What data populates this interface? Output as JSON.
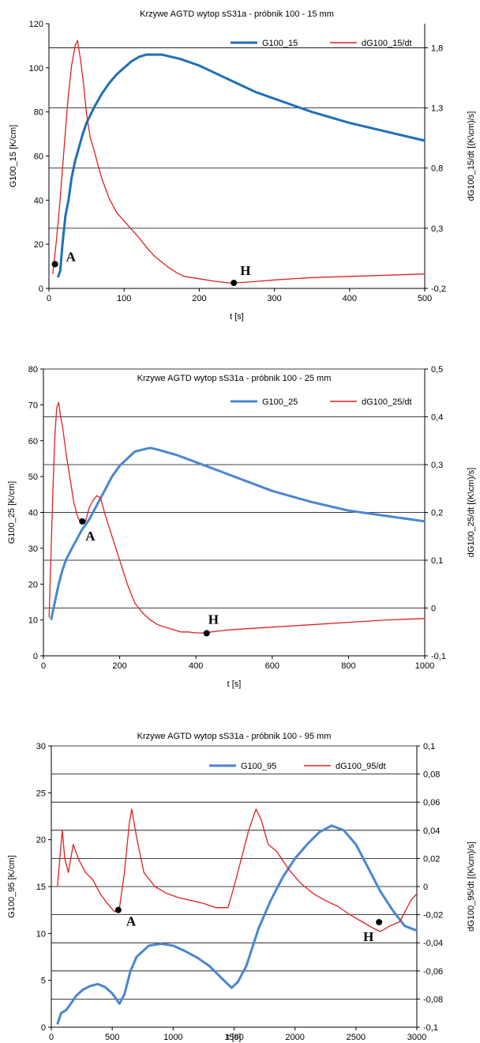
{
  "colors": {
    "g_series": "#4a86d0",
    "g_series_dark": "#1f6fb8",
    "dg_series": "#e02020",
    "grid": "#000000",
    "marker": "#000000"
  },
  "chart_data": [
    {
      "type": "line",
      "title": "Krzywe AGTD   wytop sS31a - próbnik 100 - 15 mm",
      "xlabel": "t [s]",
      "ylabel": "G100_15   [K/cm]",
      "y2label": "dG100_15/dt  [(K\\cm)/s]",
      "xlim": [
        0,
        500
      ],
      "ylim": [
        0,
        120
      ],
      "y2lim": [
        -0.2,
        2.0
      ],
      "xticks": [
        0,
        100,
        200,
        300,
        400,
        500
      ],
      "yticks": [
        0,
        20,
        40,
        60,
        80,
        100,
        120
      ],
      "y2ticks": [
        -0.2,
        0.3,
        0.8,
        1.3,
        1.8
      ],
      "y2ticklabels": [
        "-0,2",
        "0,3",
        "0,8",
        "1,3",
        "1,8"
      ],
      "grid": true,
      "legend": "top-right",
      "series": [
        {
          "name": "G100_15",
          "axis": "left",
          "color": "#1f6fb8",
          "x": [
            12,
            15,
            18,
            22,
            26,
            30,
            35,
            40,
            45,
            50,
            60,
            70,
            80,
            90,
            100,
            110,
            120,
            130,
            140,
            150,
            175,
            200,
            225,
            250,
            275,
            300,
            350,
            400,
            450,
            500
          ],
          "y": [
            5,
            8,
            20,
            33,
            40,
            50,
            58,
            64,
            70,
            75,
            82,
            88,
            93,
            97,
            100,
            103,
            105,
            106,
            106,
            106,
            104,
            101,
            97,
            93,
            89,
            86,
            80,
            75,
            71,
            67
          ]
        },
        {
          "name": "dG100_15/dt",
          "axis": "right",
          "color": "#e02020",
          "x": [
            5,
            10,
            15,
            20,
            25,
            30,
            35,
            38,
            42,
            46,
            50,
            55,
            60,
            65,
            70,
            80,
            90,
            100,
            110,
            120,
            130,
            140,
            150,
            160,
            170,
            180,
            200,
            220,
            240,
            260,
            280,
            300,
            350,
            400,
            450,
            500
          ],
          "y": [
            -0.08,
            0.2,
            0.55,
            0.95,
            1.35,
            1.65,
            1.82,
            1.86,
            1.7,
            1.5,
            1.25,
            1.05,
            0.95,
            0.83,
            0.72,
            0.55,
            0.43,
            0.36,
            0.29,
            0.22,
            0.14,
            0.07,
            0.02,
            -0.03,
            -0.07,
            -0.1,
            -0.12,
            -0.14,
            -0.155,
            -0.15,
            -0.14,
            -0.13,
            -0.11,
            -0.1,
            -0.09,
            -0.08
          ]
        }
      ],
      "points": [
        {
          "label": "A",
          "x": 8,
          "y": 11,
          "axis": "left",
          "label_dx": 14,
          "label_dy": -4
        },
        {
          "label": "H",
          "x": 246,
          "y": 2.5,
          "axis": "left",
          "label_dx": 8,
          "label_dy": -10
        }
      ]
    },
    {
      "type": "line",
      "title": "Krzywe AGTD   wytop sS31a - próbnik 100 - 25 mm",
      "xlabel": "t [s]",
      "ylabel": "G100_25   [K/cm]",
      "y2label": "dG100_25/dt  [(K\\cm)/s]",
      "xlim": [
        0,
        1000
      ],
      "ylim": [
        0,
        80
      ],
      "y2lim": [
        -0.1,
        0.5
      ],
      "xticks": [
        0,
        200,
        400,
        600,
        800,
        1000
      ],
      "yticks": [
        0,
        10,
        20,
        30,
        40,
        50,
        60,
        70,
        80
      ],
      "y2ticks": [
        -0.1,
        0,
        0.1,
        0.2,
        0.3,
        0.4,
        0.5
      ],
      "y2ticklabels": [
        "-0,1",
        "0",
        "0,1",
        "0,2",
        "0,3",
        "0,4",
        "0,5"
      ],
      "grid": true,
      "legend": "top-right",
      "series": [
        {
          "name": "G100_25",
          "axis": "left",
          "color": "#4a86d0",
          "x": [
            20,
            30,
            40,
            50,
            60,
            80,
            100,
            120,
            140,
            160,
            180,
            200,
            220,
            240,
            260,
            280,
            300,
            350,
            400,
            450,
            500,
            600,
            700,
            800,
            900,
            1000
          ],
          "y": [
            10,
            15,
            20,
            24,
            27,
            31,
            35,
            38,
            42,
            46,
            50,
            53,
            55,
            57,
            57.5,
            58,
            57.5,
            56,
            54,
            52,
            50,
            46,
            43,
            40.5,
            39,
            37.5
          ]
        },
        {
          "name": "dG100_25/dt",
          "axis": "right",
          "color": "#e02020",
          "x": [
            15,
            20,
            25,
            30,
            35,
            40,
            45,
            50,
            60,
            70,
            80,
            90,
            100,
            110,
            120,
            130,
            140,
            150,
            160,
            180,
            200,
            220,
            240,
            260,
            280,
            300,
            320,
            340,
            360,
            380,
            400,
            420,
            440,
            460,
            500,
            600,
            700,
            800,
            900,
            1000
          ],
          "y": [
            -0.02,
            0.12,
            0.25,
            0.36,
            0.42,
            0.43,
            0.4,
            0.38,
            0.32,
            0.27,
            0.22,
            0.19,
            0.175,
            0.18,
            0.21,
            0.225,
            0.235,
            0.23,
            0.2,
            0.15,
            0.1,
            0.05,
            0.01,
            -0.01,
            -0.025,
            -0.035,
            -0.04,
            -0.045,
            -0.05,
            -0.05,
            -0.052,
            -0.052,
            -0.05,
            -0.048,
            -0.045,
            -0.04,
            -0.035,
            -0.03,
            -0.025,
            -0.022
          ]
        }
      ],
      "points": [
        {
          "label": "A",
          "x": 102,
          "y": 37.5,
          "axis": "left",
          "label_dx": 4,
          "label_dy": 24
        },
        {
          "label": "H",
          "x": 428,
          "y": 6.3,
          "axis": "left",
          "label_dx": 2,
          "label_dy": -12
        }
      ]
    },
    {
      "type": "line",
      "title": "Krzywe AGTD   wytop sS31a - próbnik 100 - 95 mm",
      "xlabel": "t [s]",
      "ylabel": "G100_95   [K/cm]",
      "y2label": "dG100_95/dt  [(K\\cm)/s]",
      "xlim": [
        0,
        3000
      ],
      "ylim": [
        0,
        30
      ],
      "y2lim": [
        -0.1,
        0.1
      ],
      "xticks": [
        0,
        500,
        1000,
        1500,
        2000,
        2500,
        3000
      ],
      "yticks": [
        0,
        5,
        10,
        15,
        20,
        25,
        30
      ],
      "y2ticks": [
        -0.1,
        -0.08,
        -0.06,
        -0.04,
        -0.02,
        0,
        0.02,
        0.04,
        0.06,
        0.08,
        0.1
      ],
      "y2ticklabels": [
        "-0,1",
        "-0,08",
        "-0,06",
        "-0,04",
        "-0,02",
        "0",
        "0,02",
        "0,04",
        "0,06",
        "0,08",
        "0,1"
      ],
      "grid": true,
      "legend": "top-right",
      "series": [
        {
          "name": "G100_95",
          "axis": "left",
          "color": "#4a86d0",
          "x": [
            50,
            80,
            120,
            160,
            200,
            260,
            320,
            380,
            440,
            500,
            560,
            600,
            650,
            700,
            800,
            900,
            1000,
            1100,
            1200,
            1300,
            1400,
            1480,
            1530,
            1600,
            1700,
            1800,
            1900,
            2000,
            2100,
            2200,
            2300,
            2400,
            2500,
            2600,
            2700,
            2800,
            2900,
            3000
          ],
          "y": [
            0.3,
            1.5,
            1.8,
            2.5,
            3.3,
            4.0,
            4.4,
            4.6,
            4.3,
            3.6,
            2.5,
            3.5,
            6.0,
            7.5,
            8.7,
            8.9,
            8.7,
            8.1,
            7.4,
            6.5,
            5.2,
            4.2,
            4.8,
            6.5,
            10.5,
            13.5,
            16.0,
            18.0,
            19.5,
            20.8,
            21.5,
            21.0,
            19.5,
            17.0,
            14.5,
            12.5,
            10.8,
            10.3
          ]
        },
        {
          "name": "dG100_95/dt",
          "axis": "right",
          "color": "#e02020",
          "x": [
            50,
            70,
            90,
            110,
            140,
            180,
            220,
            280,
            340,
            400,
            460,
            520,
            560,
            600,
            640,
            660,
            700,
            760,
            850,
            950,
            1050,
            1150,
            1250,
            1350,
            1450,
            1500,
            1560,
            1620,
            1680,
            1720,
            1780,
            1850,
            1950,
            2050,
            2150,
            2250,
            2350,
            2450,
            2550,
            2650,
            2700,
            2780,
            2860,
            2950,
            3000
          ],
          "y": [
            0.0,
            0.02,
            0.04,
            0.02,
            0.01,
            0.03,
            0.02,
            0.01,
            0.005,
            -0.005,
            -0.012,
            -0.018,
            -0.015,
            0.01,
            0.045,
            0.055,
            0.035,
            0.01,
            0.0,
            -0.005,
            -0.008,
            -0.01,
            -0.012,
            -0.015,
            -0.015,
            0.0,
            0.02,
            0.04,
            0.055,
            0.048,
            0.03,
            0.025,
            0.012,
            0.002,
            -0.005,
            -0.01,
            -0.014,
            -0.02,
            -0.025,
            -0.03,
            -0.032,
            -0.028,
            -0.025,
            -0.01,
            -0.005
          ]
        }
      ],
      "points": [
        {
          "label": "A",
          "x": 550,
          "y": 12.5,
          "axis": "left",
          "label_dx": 10,
          "label_dy": 20
        },
        {
          "label": "H",
          "x": 2690,
          "y": 11.2,
          "axis": "left",
          "label_dx": -20,
          "label_dy": 24
        }
      ]
    }
  ]
}
